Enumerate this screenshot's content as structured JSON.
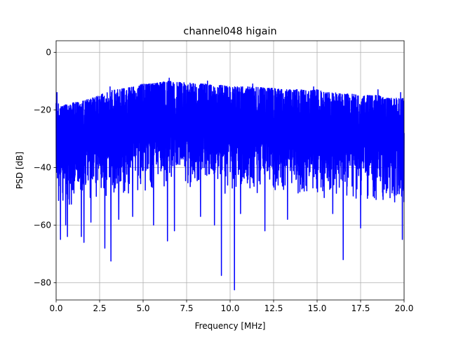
{
  "chart_data": {
    "type": "line",
    "title": "channel048 higain",
    "xlabel": "Frequency [MHz]",
    "ylabel": "PSD [dB]",
    "xlim": [
      0,
      20
    ],
    "ylim": [
      -86,
      4
    ],
    "xticks": [
      0,
      2.5,
      5,
      7.5,
      10,
      12.5,
      15,
      17.5,
      20
    ],
    "xtick_labels": [
      "0.0",
      "2.5",
      "5.0",
      "7.5",
      "10.0",
      "12.5",
      "15.0",
      "17.5",
      "20.0"
    ],
    "yticks": [
      0,
      -20,
      -40,
      -60,
      -80
    ],
    "ytick_labels": [
      "0",
      "−20",
      "−40",
      "−60",
      "−80"
    ],
    "grid": true,
    "legend": "none",
    "series": [
      {
        "color": "#0000ff",
        "upper_envelope": {
          "x": [
            0,
            0.3,
            0.6,
            1,
            1.5,
            2,
            2.5,
            3,
            3.5,
            4,
            4.5,
            5,
            5.5,
            6,
            6.5,
            7,
            7.5,
            8,
            8.5,
            9,
            9.5,
            10,
            10.5,
            11,
            11.5,
            12,
            12.5,
            13,
            13.5,
            14,
            14.5,
            15,
            15.5,
            16,
            16.5,
            17,
            17.5,
            18,
            18.5,
            19,
            19.5,
            20
          ],
          "y": [
            -17,
            -19,
            -18,
            -17.5,
            -17,
            -16,
            -15,
            -13.5,
            -13,
            -12.5,
            -12,
            -11,
            -11,
            -10.5,
            -10,
            -10.5,
            -10.5,
            -11,
            -11,
            -11.5,
            -11.5,
            -12,
            -12,
            -12,
            -12,
            -12.5,
            -12.5,
            -13,
            -13,
            -13,
            -13.5,
            -13,
            -14,
            -14,
            -14.5,
            -14.5,
            -15,
            -15,
            -15,
            -16,
            -16,
            -16
          ]
        },
        "lower_envelope": {
          "x": [
            0,
            0.5,
            1,
            1.5,
            2,
            2.5,
            3,
            3.5,
            4,
            4.5,
            5,
            5.5,
            6,
            6.5,
            7,
            7.5,
            8,
            8.5,
            9,
            9.5,
            10,
            10.5,
            11,
            11.5,
            12,
            12.5,
            13,
            13.5,
            14,
            14.5,
            15,
            15.5,
            16,
            16.5,
            17,
            17.5,
            18,
            18.5,
            19,
            19.5,
            20
          ],
          "y": [
            -55,
            -55,
            -54,
            -53,
            -53,
            -52,
            -51,
            -51,
            -50,
            -50,
            -49,
            -49,
            -48,
            -48,
            -48,
            -48,
            -49,
            -49,
            -49,
            -49,
            -50,
            -50,
            -50,
            -50,
            -50,
            -50,
            -50,
            -50,
            -51,
            -51,
            -51,
            -51,
            -52,
            -52,
            -52,
            -52,
            -53,
            -53,
            -53,
            -54,
            -55
          ]
        },
        "dips": [
          {
            "x": 0.25,
            "y": -65
          },
          {
            "x": 0.55,
            "y": -60
          },
          {
            "x": 0.65,
            "y": -64
          },
          {
            "x": 1.45,
            "y": -64
          },
          {
            "x": 1.6,
            "y": -66
          },
          {
            "x": 2.0,
            "y": -59
          },
          {
            "x": 2.8,
            "y": -68
          },
          {
            "x": 3.15,
            "y": -72.5
          },
          {
            "x": 3.6,
            "y": -58
          },
          {
            "x": 4.4,
            "y": -57
          },
          {
            "x": 5.6,
            "y": -60
          },
          {
            "x": 6.4,
            "y": -65.5
          },
          {
            "x": 6.8,
            "y": -62
          },
          {
            "x": 8.3,
            "y": -57
          },
          {
            "x": 9.1,
            "y": -60
          },
          {
            "x": 9.5,
            "y": -77.5
          },
          {
            "x": 10.25,
            "y": -82.5
          },
          {
            "x": 10.6,
            "y": -56
          },
          {
            "x": 12.0,
            "y": -62
          },
          {
            "x": 13.3,
            "y": -58
          },
          {
            "x": 14.8,
            "y": -68
          },
          {
            "x": 15.9,
            "y": -56
          },
          {
            "x": 16.5,
            "y": -72
          },
          {
            "x": 17.5,
            "y": -61
          },
          {
            "x": 19.8,
            "y": -62
          },
          {
            "x": 19.9,
            "y": -65
          }
        ],
        "spikes": [
          {
            "x": 0.05,
            "y": -14
          },
          {
            "x": 3.1,
            "y": -12
          },
          {
            "x": 6.5,
            "y": -9
          },
          {
            "x": 8.7,
            "y": -10
          },
          {
            "x": 11.3,
            "y": -11
          },
          {
            "x": 14.8,
            "y": -12
          },
          {
            "x": 18.5,
            "y": -13
          },
          {
            "x": 19.8,
            "y": -14
          }
        ],
        "sample_count": 2400,
        "line_width": 1.5
      }
    ]
  }
}
